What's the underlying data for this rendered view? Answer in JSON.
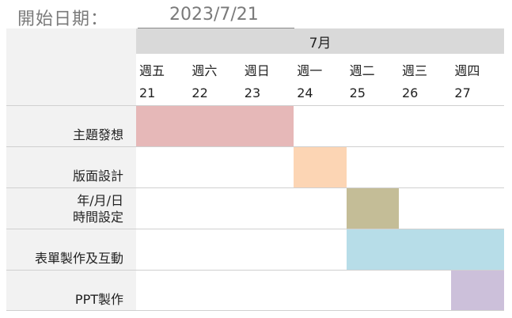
{
  "header": {
    "start_label": "開始日期：",
    "start_date": "2023/7/21"
  },
  "calendar": {
    "month": "7月",
    "days": [
      {
        "weekday": "週五",
        "day": "21"
      },
      {
        "weekday": "週六",
        "day": "22"
      },
      {
        "weekday": "週日",
        "day": "23"
      },
      {
        "weekday": "週一",
        "day": "24"
      },
      {
        "weekday": "週二",
        "day": "25"
      },
      {
        "weekday": "週三",
        "day": "26"
      },
      {
        "weekday": "週四",
        "day": "27"
      }
    ]
  },
  "tasks": [
    {
      "name": "主題發想",
      "start_index": 0,
      "duration": 3,
      "color": "#e6b8b8"
    },
    {
      "name": "版面設計",
      "start_index": 3,
      "duration": 1,
      "color": "#fcd5b4"
    },
    {
      "name": "年/月/日\n時間設定",
      "start_index": 4,
      "duration": 1,
      "color": "#c4bd97"
    },
    {
      "name": "表單製作及互動",
      "start_index": 4,
      "duration": 3,
      "color": "#b7dde8"
    },
    {
      "name": "PPT製作",
      "start_index": 6,
      "duration": 1,
      "color": "#ccc0da"
    }
  ]
}
